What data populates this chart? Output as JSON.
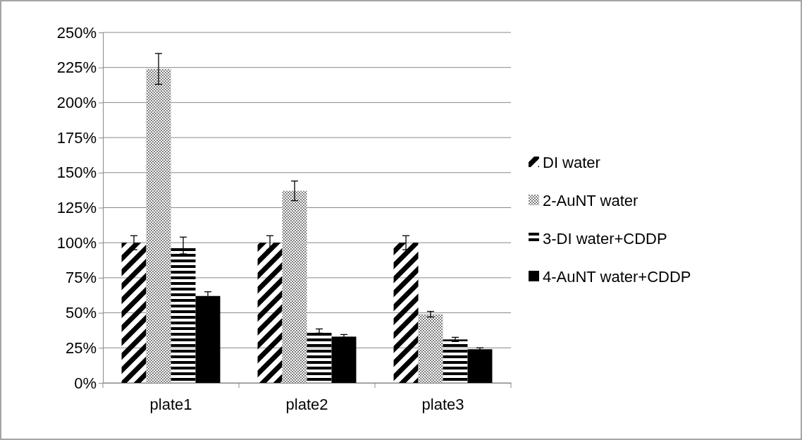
{
  "chart_data": {
    "type": "bar",
    "categories": [
      "plate1",
      "plate2",
      "plate3"
    ],
    "series": [
      {
        "name": "DI water",
        "color": "#000000",
        "values": [
          100,
          100,
          100
        ],
        "errors": [
          5,
          5,
          5
        ]
      },
      {
        "name": "2-AuNT water",
        "color": "#7f7f7f",
        "values": [
          224,
          137,
          49
        ],
        "errors": [
          11,
          7,
          2
        ]
      },
      {
        "name": "3-DI water+CDDP",
        "color": "#000000",
        "values": [
          98,
          37,
          31
        ],
        "errors": [
          6,
          1.5,
          1.5
        ]
      },
      {
        "name": "4-AuNT water+CDDP",
        "color": "#000000",
        "values": [
          62,
          33,
          24
        ],
        "errors": [
          3,
          1.5,
          1
        ]
      }
    ],
    "ylim": [
      0,
      250
    ],
    "yticks": [
      {
        "value": 0,
        "label": "0%"
      },
      {
        "value": 25,
        "label": "25%"
      },
      {
        "value": 50,
        "label": "50%"
      },
      {
        "value": 75,
        "label": "75%"
      },
      {
        "value": 100,
        "label": "100%"
      },
      {
        "value": 125,
        "label": "125%"
      },
      {
        "value": 150,
        "label": "150%"
      },
      {
        "value": 175,
        "label": "175%"
      },
      {
        "value": 200,
        "label": "200%"
      },
      {
        "value": 225,
        "label": "225%"
      },
      {
        "value": 250,
        "label": "250%"
      }
    ],
    "grid": "y",
    "legend": "right"
  }
}
